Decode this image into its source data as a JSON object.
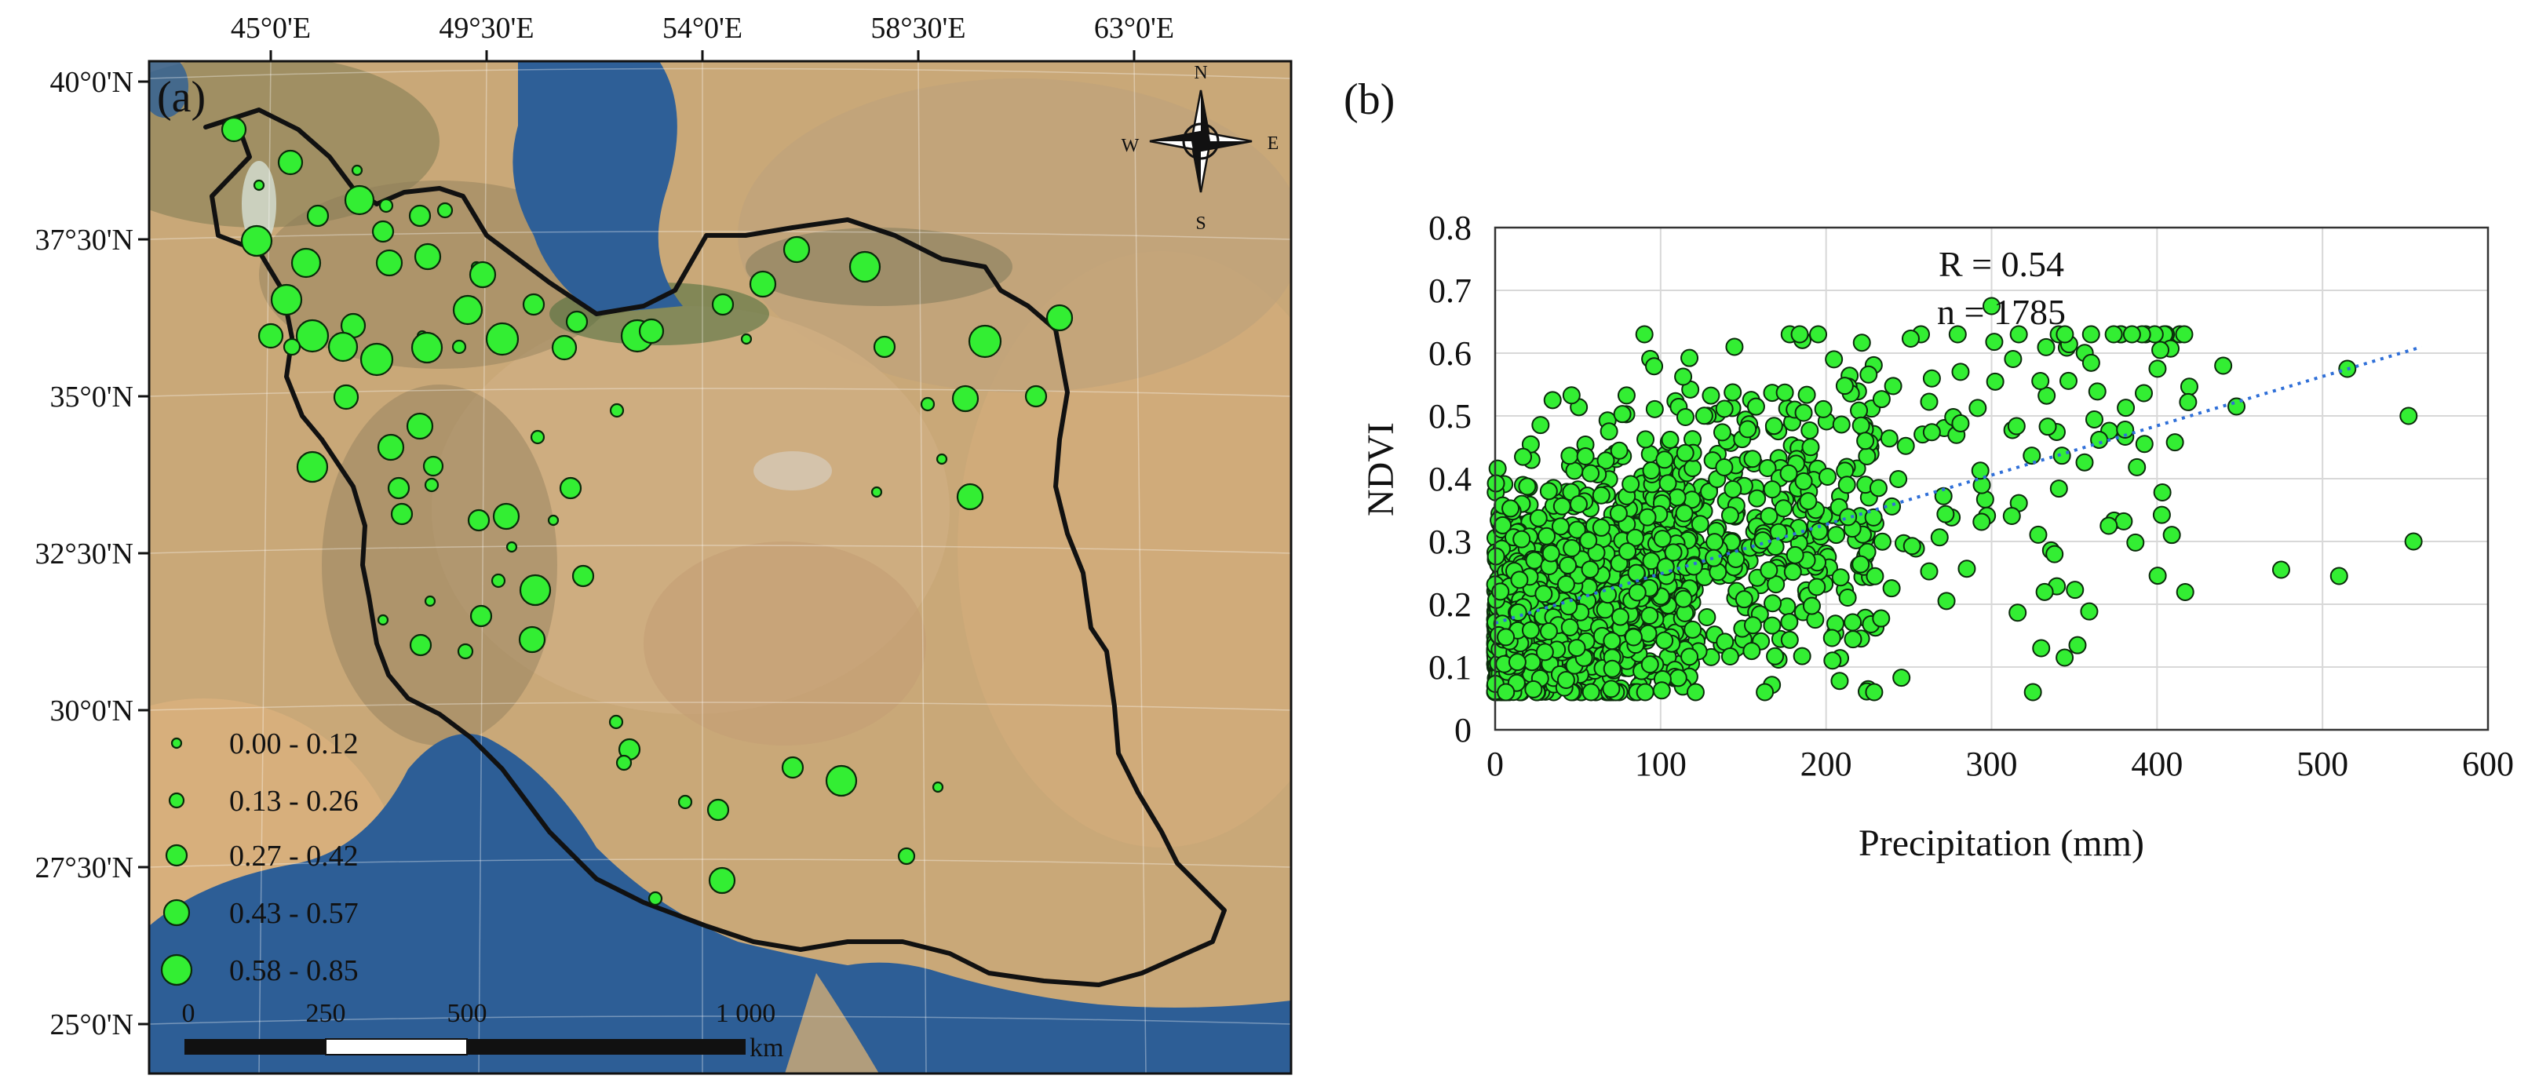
{
  "panel_a": {
    "label": "(a)",
    "top_ticks": [
      "45°0'E",
      "49°30'E",
      "54°0'E",
      "58°30'E",
      "63°0'E"
    ],
    "left_ticks": [
      "40°0'N",
      "37°30'N",
      "35°0'N",
      "32°30'N",
      "30°0'N",
      "27°30'N",
      "25°0'N"
    ],
    "compass": {
      "n": "N",
      "s": "S",
      "e": "E",
      "w": "W"
    },
    "legend": [
      "0.00 - 0.12",
      "0.13 - 0.26",
      "0.27 - 0.42",
      "0.43 - 0.57",
      "0.58 - 0.85"
    ],
    "scalebar": {
      "labels": [
        "0",
        "250",
        "500",
        "1 000"
      ],
      "unit": "km"
    },
    "colors": {
      "point_fill": "#33ee33",
      "point_stroke": "#0a2a0a",
      "border": "#111111",
      "sea": "#2d5f96"
    }
  },
  "chart_data": {
    "type": "scatter",
    "panel_label": "(b)",
    "xlabel": "Precipitation (mm)",
    "ylabel": "NDVI",
    "xlim": [
      0,
      600
    ],
    "ylim": [
      0,
      0.8
    ],
    "xticks": [
      "0",
      "100",
      "200",
      "300",
      "400",
      "500",
      "600"
    ],
    "yticks": [
      "0",
      "0.1",
      "0.2",
      "0.3",
      "0.4",
      "0.5",
      "0.6",
      "0.7",
      "0.8"
    ],
    "grid": true,
    "point_color": "#33ee33",
    "trendline": {
      "color": "#2f6fd8",
      "x": [
        0,
        560
      ],
      "y": [
        0.17,
        0.61
      ]
    },
    "annotations": [
      "R = 0.54",
      "n = 1785"
    ],
    "n": 1785,
    "distribution": {
      "dense_region": {
        "x_range": [
          0,
          180
        ],
        "y_range": [
          0.06,
          0.45
        ]
      },
      "outliers": [
        [
          300,
          0.675
        ],
        [
          330,
          0.13
        ],
        [
          475,
          0.255
        ],
        [
          510,
          0.245
        ],
        [
          555,
          0.3
        ],
        [
          552,
          0.5
        ],
        [
          515,
          0.575
        ],
        [
          448,
          0.515
        ],
        [
          402,
          0.605
        ],
        [
          440,
          0.58
        ]
      ]
    }
  }
}
